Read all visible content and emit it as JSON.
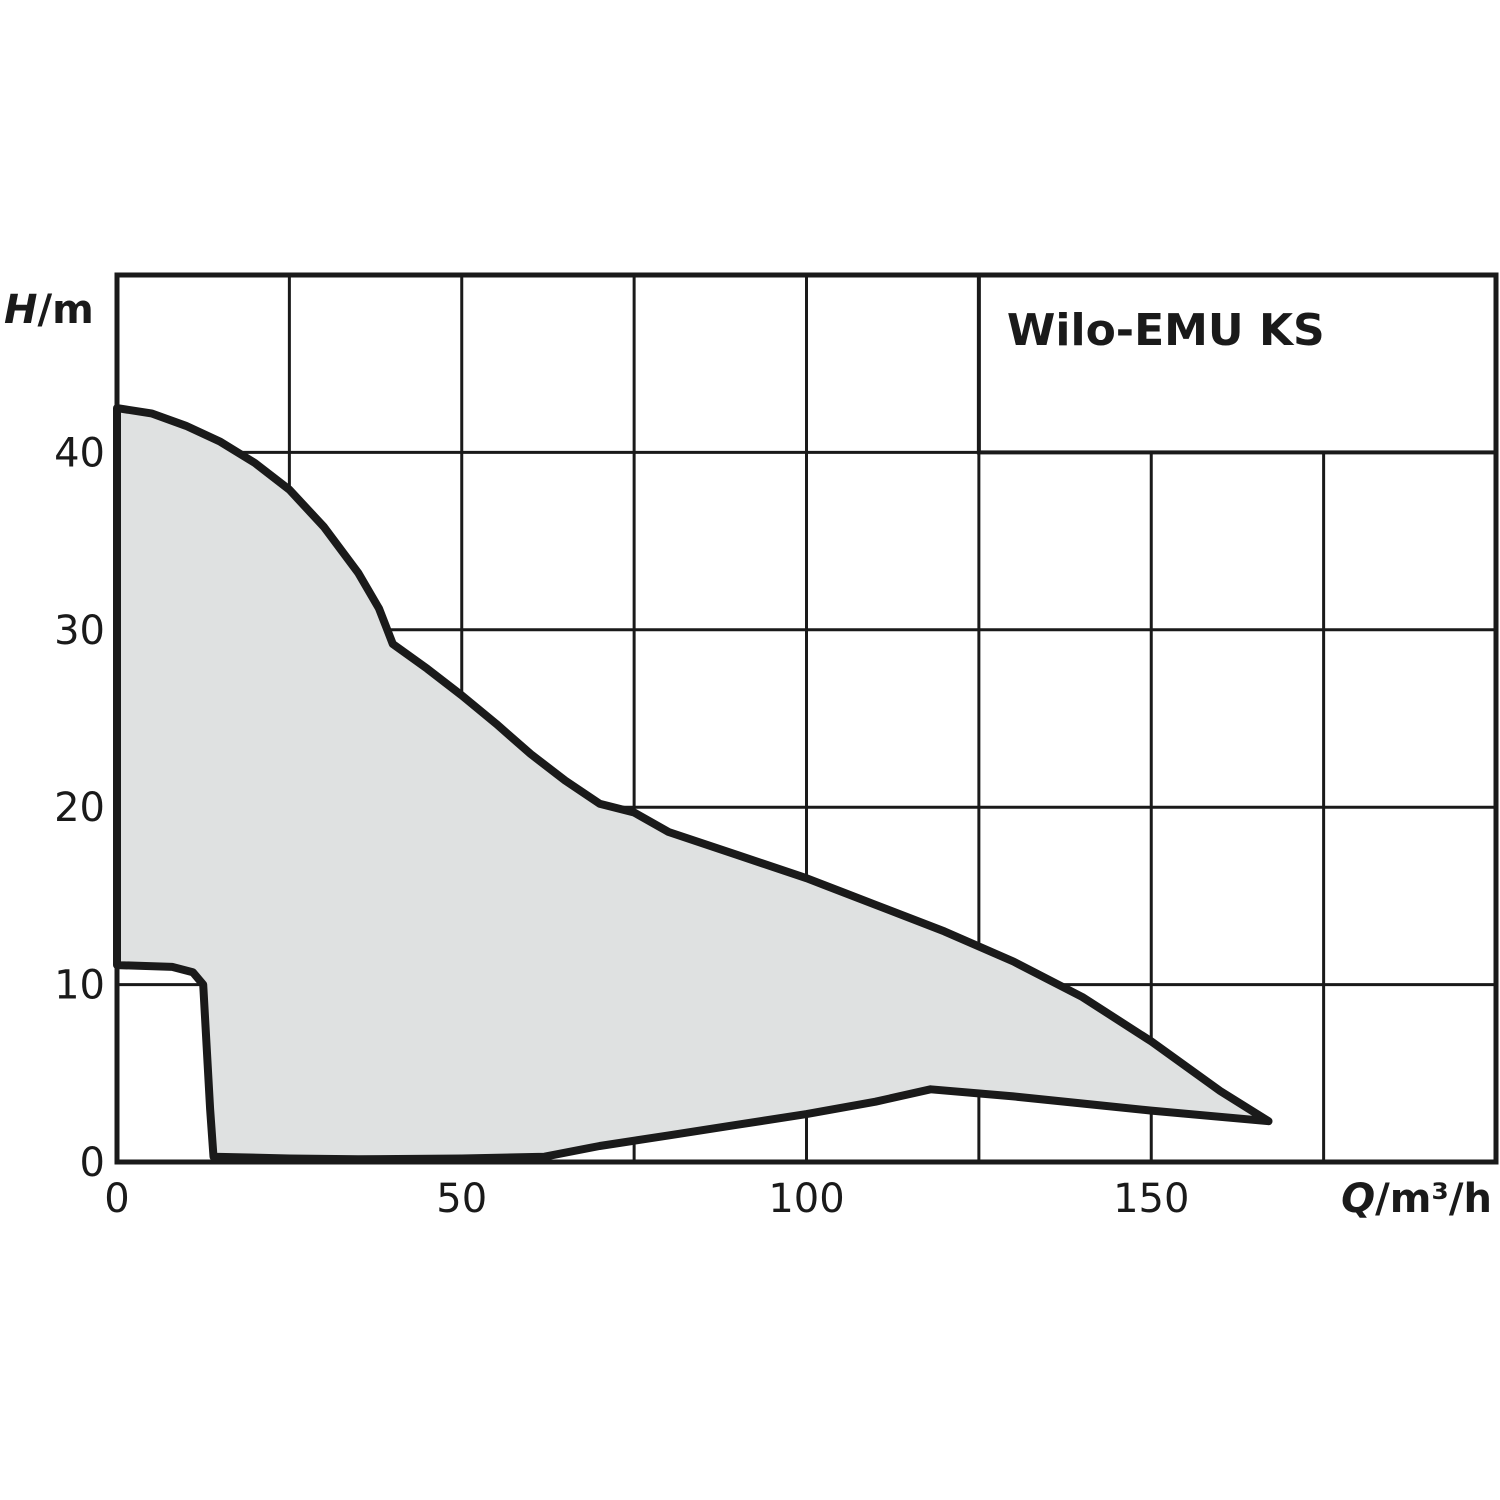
{
  "chart_data": {
    "type": "area",
    "title": "Wilo-EMU KS",
    "xlabel_var": "Q",
    "xlabel_unit": "/m³/h",
    "ylabel_var": "H",
    "ylabel_unit": "/m",
    "xlim": [
      0,
      200
    ],
    "ylim": [
      0,
      50
    ],
    "x_ticks": [
      0,
      50,
      100,
      150
    ],
    "y_ticks": [
      0,
      10,
      20,
      30,
      40
    ],
    "grid": true,
    "fill_color": "#dfe1e1",
    "line_color": "#1a1a1a",
    "envelope": {
      "upper_boundary": [
        [
          0,
          42.5
        ],
        [
          5,
          42.2
        ],
        [
          10,
          41.5
        ],
        [
          15,
          40.6
        ],
        [
          20,
          39.4
        ],
        [
          25,
          37.9
        ],
        [
          30,
          35.8
        ],
        [
          35,
          33.2
        ],
        [
          38,
          31.2
        ],
        [
          40,
          29.2
        ],
        [
          45,
          27.8
        ],
        [
          50,
          26.3
        ],
        [
          55,
          24.7
        ],
        [
          60,
          23
        ],
        [
          65,
          21.5
        ],
        [
          70,
          20.2
        ],
        [
          75,
          19.7
        ],
        [
          80,
          18.6
        ],
        [
          90,
          17.3
        ],
        [
          100,
          16
        ],
        [
          110,
          14.5
        ],
        [
          120,
          13
        ],
        [
          130,
          11.3
        ],
        [
          140,
          9.3
        ],
        [
          150,
          6.8
        ],
        [
          160,
          4
        ],
        [
          167,
          2.3
        ]
      ],
      "lower_boundary": [
        [
          167,
          2.3
        ],
        [
          150,
          2.9
        ],
        [
          140,
          3.3
        ],
        [
          130,
          3.7
        ],
        [
          118,
          4.1
        ],
        [
          110,
          3.4
        ],
        [
          100,
          2.7
        ],
        [
          90,
          2.1
        ],
        [
          80,
          1.5
        ],
        [
          70,
          0.9
        ],
        [
          62,
          0.3
        ],
        [
          50,
          0.2
        ],
        [
          35,
          0.15
        ],
        [
          25,
          0.2
        ],
        [
          14,
          0.3
        ],
        [
          13.5,
          3
        ],
        [
          12.5,
          10
        ],
        [
          11,
          10.7
        ],
        [
          8,
          11
        ],
        [
          0,
          11.1
        ],
        [
          0,
          42.5
        ]
      ]
    }
  }
}
